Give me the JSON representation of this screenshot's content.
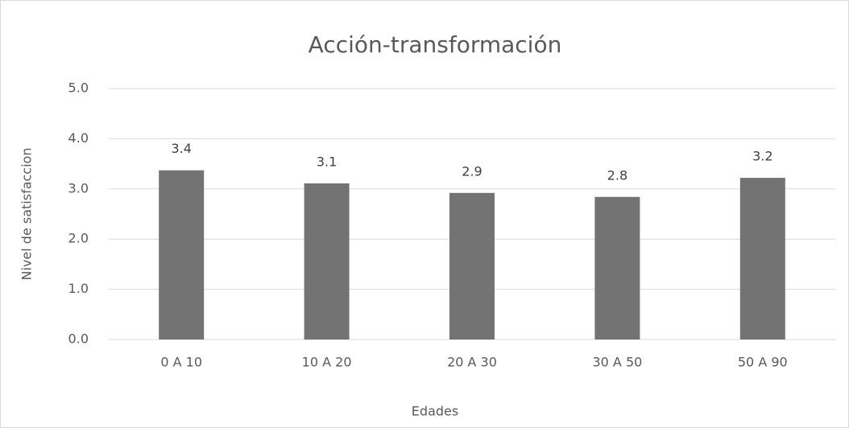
{
  "chart_data": {
    "type": "bar",
    "title": "Acción-transformación",
    "x_label": "Edades",
    "y_label": "Nivel de satisfaccion",
    "categories": [
      "0 A 10",
      "10 A 20",
      "20 A 30",
      "30 A 50",
      "50 A 90"
    ],
    "values": [
      3.37,
      3.11,
      2.92,
      2.84,
      3.22
    ],
    "value_labels": [
      "3.4",
      "3.1",
      "2.9",
      "2.8",
      "3.2"
    ],
    "color": "#737373",
    "ylim": [
      0,
      5
    ],
    "yticks": [
      {
        "value": 0,
        "label": "0.0"
      },
      {
        "value": 1,
        "label": "1.0"
      },
      {
        "value": 2,
        "label": "2.0"
      },
      {
        "value": 3,
        "label": "3.0"
      },
      {
        "value": 4,
        "label": "4.0"
      },
      {
        "value": 5,
        "label": "5.0"
      }
    ],
    "grid": true
  }
}
